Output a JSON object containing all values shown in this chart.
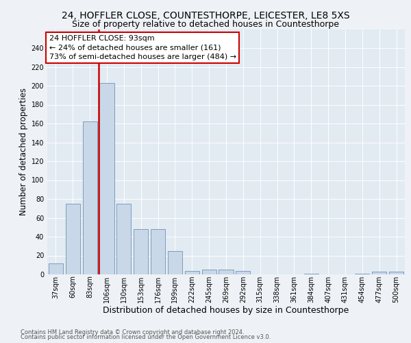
{
  "title1": "24, HOFFLER CLOSE, COUNTESTHORPE, LEICESTER, LE8 5XS",
  "title2": "Size of property relative to detached houses in Countesthorpe",
  "xlabel": "Distribution of detached houses by size in Countesthorpe",
  "ylabel": "Number of detached properties",
  "categories": [
    "37sqm",
    "60sqm",
    "83sqm",
    "106sqm",
    "130sqm",
    "153sqm",
    "176sqm",
    "199sqm",
    "222sqm",
    "245sqm",
    "269sqm",
    "292sqm",
    "315sqm",
    "338sqm",
    "361sqm",
    "384sqm",
    "407sqm",
    "431sqm",
    "454sqm",
    "477sqm",
    "500sqm"
  ],
  "values": [
    12,
    75,
    162,
    203,
    75,
    48,
    48,
    25,
    4,
    5,
    5,
    4,
    0,
    0,
    0,
    1,
    0,
    0,
    1,
    3,
    3
  ],
  "bar_color": "#c8d8e8",
  "bar_edge_color": "#7090b8",
  "vline_color": "#cc0000",
  "vline_pos": 2.5,
  "annotation_text": "24 HOFFLER CLOSE: 93sqm\n← 24% of detached houses are smaller (161)\n73% of semi-detached houses are larger (484) →",
  "annotation_box_color": "#cc0000",
  "ylim": [
    0,
    260
  ],
  "yticks": [
    0,
    20,
    40,
    60,
    80,
    100,
    120,
    140,
    160,
    180,
    200,
    220,
    240
  ],
  "footer1": "Contains HM Land Registry data © Crown copyright and database right 2024.",
  "footer2": "Contains public sector information licensed under the Open Government Licence v3.0.",
  "bg_color": "#eef2f6",
  "plot_bg_color": "#e2eaf2",
  "grid_color": "#ffffff",
  "title1_fontsize": 10,
  "title2_fontsize": 9,
  "xlabel_fontsize": 9,
  "ylabel_fontsize": 8.5,
  "tick_fontsize": 7,
  "annotation_fontsize": 8,
  "footer_fontsize": 6,
  "footer_color": "#555555"
}
